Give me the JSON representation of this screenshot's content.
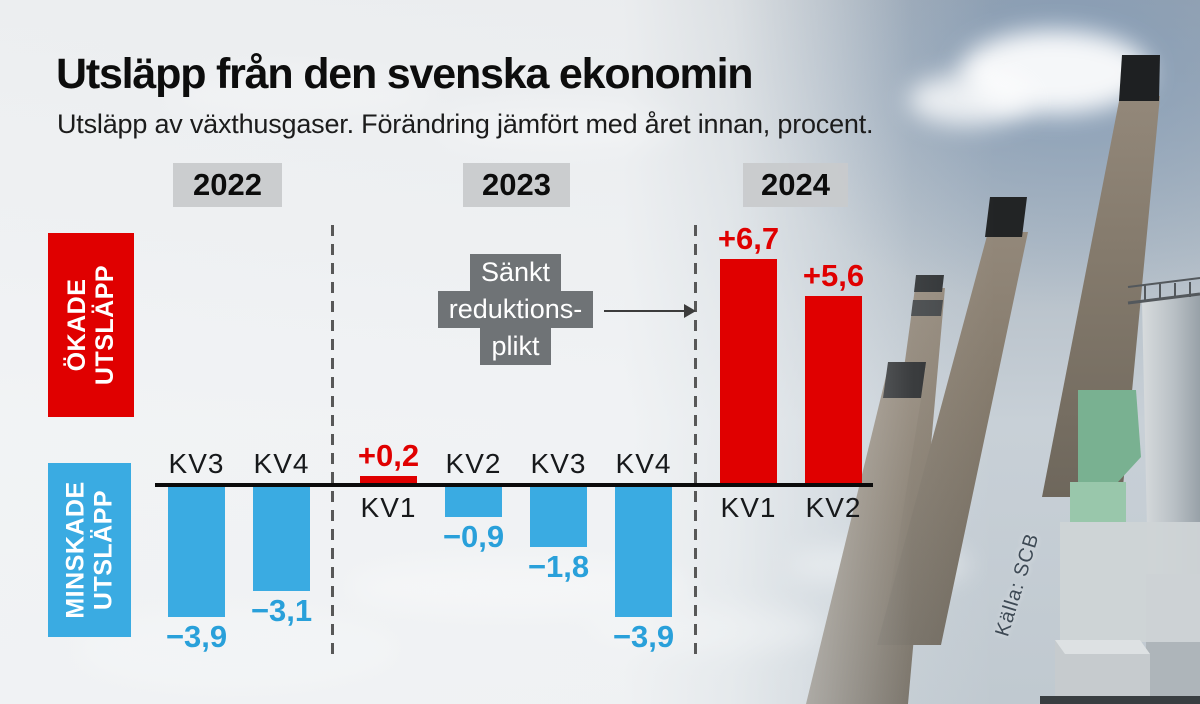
{
  "title": "Utsläpp från den svenska ekonomin",
  "subtitle": "Utsläpp av växthusgaser. Förändring jämfört med året innan, procent.",
  "source": "Källa: SCB",
  "years": [
    "2022",
    "2023",
    "2024"
  ],
  "legend": {
    "increase": {
      "line1": "ÖKADE",
      "line2": "UTSLÄPP"
    },
    "decrease": {
      "line1": "MINSKADE",
      "line2": "UTSLÄPP"
    }
  },
  "annotation": {
    "lines": [
      "Sänkt",
      "reduktions-",
      "plikt"
    ]
  },
  "colors": {
    "increase_red": "#e00000",
    "decrease_blue": "#3aabe2",
    "value_text_blue": "#29a0da",
    "year_label_bg": "#c8caca",
    "annotation_bg": "#696d70",
    "baseline_black": "#0b0b0b"
  },
  "chart_data": {
    "type": "bar",
    "title": "Utsläpp från den svenska ekonomin",
    "subtitle": "Utsläpp av växthusgaser. Förändring jämfört med året innan, procent.",
    "unit": "percent change vs same quarter previous year",
    "ylim": [
      -4.5,
      7.5
    ],
    "grid": false,
    "legend_position": "left-side-vertical",
    "categories": [
      "2022 KV3",
      "2022 KV4",
      "2023 KV1",
      "2023 KV2",
      "2023 KV3",
      "2023 KV4",
      "2024 KV1",
      "2024 KV2"
    ],
    "values": [
      -3.9,
      -3.1,
      0.2,
      -0.9,
      -1.8,
      -3.9,
      6.7,
      5.6
    ],
    "bars": [
      {
        "year": "2022",
        "quarter": "KV3",
        "value": -3.9,
        "label": "−3,9"
      },
      {
        "year": "2022",
        "quarter": "KV4",
        "value": -3.1,
        "label": "−3,1"
      },
      {
        "year": "2023",
        "quarter": "KV1",
        "value": 0.2,
        "label": "+0,2"
      },
      {
        "year": "2023",
        "quarter": "KV2",
        "value": -0.9,
        "label": "−0,9"
      },
      {
        "year": "2023",
        "quarter": "KV3",
        "value": -1.8,
        "label": "−1,8"
      },
      {
        "year": "2023",
        "quarter": "KV4",
        "value": -3.9,
        "label": "−3,9"
      },
      {
        "year": "2024",
        "quarter": "KV1",
        "value": 6.7,
        "label": "+6,7"
      },
      {
        "year": "2024",
        "quarter": "KV2",
        "value": 5.6,
        "label": "+5,6"
      }
    ],
    "annotation": "Sänkt reduktionsplikt (points to 2024 increase bars)"
  }
}
